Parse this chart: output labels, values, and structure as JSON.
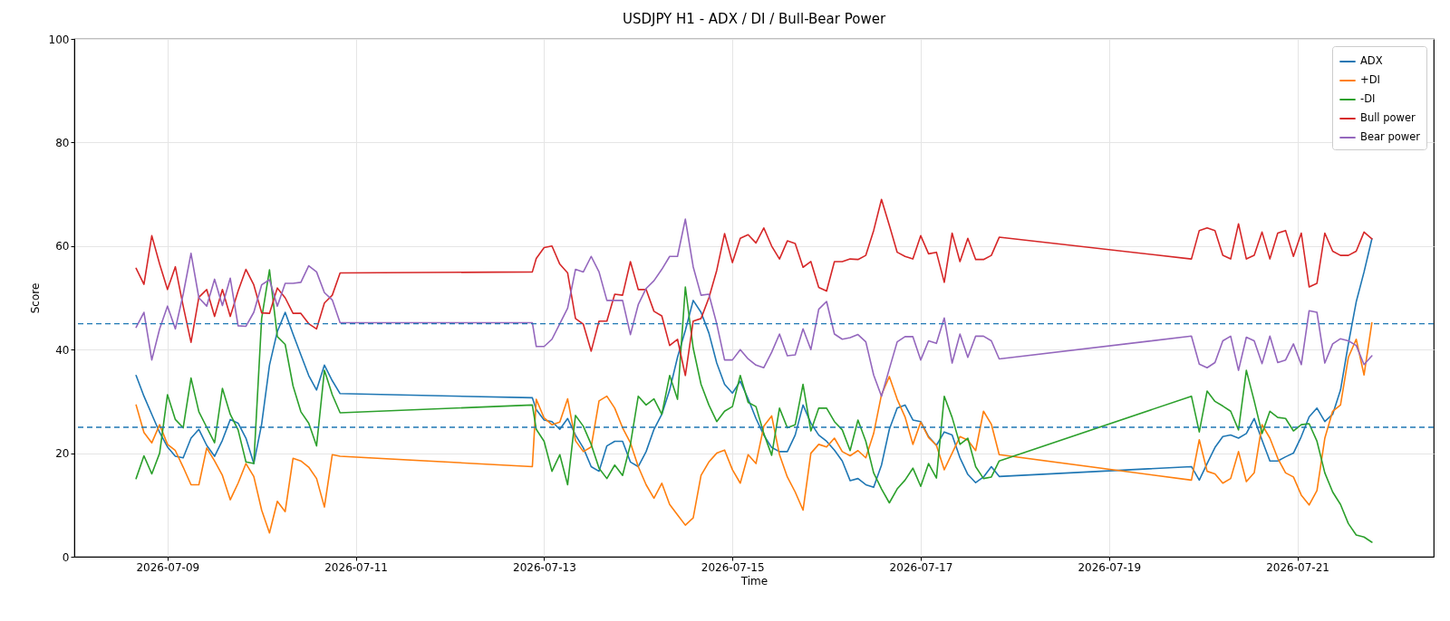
{
  "chart_data": {
    "type": "line",
    "title": "USDJPY H1 - ADX / DI / Bull-Bear Power",
    "xlabel": "Time",
    "ylabel": "Score",
    "x": [
      "2026-07-08T16:00",
      "2026-07-08T18:00",
      "2026-07-08T20:00",
      "2026-07-08T22:00",
      "2026-07-09T00:00",
      "2026-07-09T02:00",
      "2026-07-09T04:00",
      "2026-07-09T06:00",
      "2026-07-09T08:00",
      "2026-07-09T10:00",
      "2026-07-09T12:00",
      "2026-07-09T14:00",
      "2026-07-09T16:00",
      "2026-07-09T18:00",
      "2026-07-09T20:00",
      "2026-07-09T22:00",
      "2026-07-10T00:00",
      "2026-07-10T02:00",
      "2026-07-10T04:00",
      "2026-07-10T06:00",
      "2026-07-10T08:00",
      "2026-07-10T10:00",
      "2026-07-10T12:00",
      "2026-07-10T14:00",
      "2026-07-10T16:00",
      "2026-07-10T18:00",
      "2026-07-10T20:00",
      "2026-07-12T21:00",
      "2026-07-12T22:00",
      "2026-07-13T00:00",
      "2026-07-13T02:00",
      "2026-07-13T04:00",
      "2026-07-13T06:00",
      "2026-07-13T08:00",
      "2026-07-13T10:00",
      "2026-07-13T12:00",
      "2026-07-13T14:00",
      "2026-07-13T16:00",
      "2026-07-13T18:00",
      "2026-07-13T20:00",
      "2026-07-13T22:00",
      "2026-07-14T00:00",
      "2026-07-14T02:00",
      "2026-07-14T04:00",
      "2026-07-14T06:00",
      "2026-07-14T08:00",
      "2026-07-14T10:00",
      "2026-07-14T12:00",
      "2026-07-14T14:00",
      "2026-07-14T16:00",
      "2026-07-14T18:00",
      "2026-07-14T20:00",
      "2026-07-14T22:00",
      "2026-07-15T00:00",
      "2026-07-15T02:00",
      "2026-07-15T04:00",
      "2026-07-15T06:00",
      "2026-07-15T08:00",
      "2026-07-15T10:00",
      "2026-07-15T12:00",
      "2026-07-15T14:00",
      "2026-07-15T16:00",
      "2026-07-15T18:00",
      "2026-07-15T20:00",
      "2026-07-15T22:00",
      "2026-07-16T00:00",
      "2026-07-16T02:00",
      "2026-07-16T04:00",
      "2026-07-16T06:00",
      "2026-07-16T08:00",
      "2026-07-16T10:00",
      "2026-07-16T12:00",
      "2026-07-16T14:00",
      "2026-07-16T16:00",
      "2026-07-16T18:00",
      "2026-07-16T20:00",
      "2026-07-16T22:00",
      "2026-07-17T00:00",
      "2026-07-17T02:00",
      "2026-07-17T04:00",
      "2026-07-17T06:00",
      "2026-07-17T08:00",
      "2026-07-17T10:00",
      "2026-07-17T12:00",
      "2026-07-17T14:00",
      "2026-07-17T16:00",
      "2026-07-17T18:00",
      "2026-07-17T20:00",
      "2026-07-19T21:00",
      "2026-07-19T23:00",
      "2026-07-20T01:00",
      "2026-07-20T03:00",
      "2026-07-20T05:00",
      "2026-07-20T07:00",
      "2026-07-20T09:00",
      "2026-07-20T11:00",
      "2026-07-20T13:00",
      "2026-07-20T15:00",
      "2026-07-20T17:00",
      "2026-07-20T19:00",
      "2026-07-20T21:00",
      "2026-07-20T23:00",
      "2026-07-21T01:00",
      "2026-07-21T03:00",
      "2026-07-21T05:00",
      "2026-07-21T07:00",
      "2026-07-21T09:00",
      "2026-07-21T11:00",
      "2026-07-21T13:00",
      "2026-07-21T15:00",
      "2026-07-21T17:00",
      "2026-07-21T19:00"
    ],
    "series": [
      {
        "name": "ADX",
        "color": "#1f77b4",
        "values": [
          35,
          31,
          27.5,
          24,
          21.2,
          19.4,
          19.1,
          22.9,
          24.6,
          21.5,
          19.4,
          22.5,
          26.5,
          25.8,
          22.9,
          18,
          25.6,
          37,
          43.5,
          47.2,
          43,
          39,
          35,
          32.2,
          37,
          34,
          31.5,
          30.7,
          28.4,
          26.4,
          26.1,
          24.6,
          26.7,
          23.5,
          21,
          17.4,
          16.5,
          21.4,
          22.3,
          22.3,
          18.3,
          17.4,
          20.3,
          24.6,
          27.5,
          32.2,
          38.5,
          43.7,
          49.5,
          47.2,
          43.2,
          37.4,
          33.3,
          31.6,
          33.9,
          30.5,
          26.7,
          23.5,
          21.1,
          20.3,
          20.3,
          23.5,
          29.3,
          25.8,
          23.5,
          22.3,
          20.6,
          18.5,
          14.7,
          15.1,
          13.9,
          13.4,
          17.7,
          24.6,
          28.7,
          29.3,
          26.4,
          26.1,
          23.2,
          21.5,
          24.1,
          23.5,
          19.1,
          15.9,
          14.3,
          15.4,
          17.4,
          15.5,
          17.4,
          14.8,
          18,
          21.1,
          23.2,
          23.5,
          22.9,
          23.8,
          26.7,
          22.5,
          18.5,
          18.5,
          19.3,
          20,
          23.2,
          27,
          28.7,
          26.1,
          27.5,
          32.2,
          41.1,
          49.2,
          55,
          61.4
        ]
      },
      {
        "name": "+DI",
        "color": "#ff7f0e",
        "values": [
          29.3,
          24,
          22,
          25.5,
          21.7,
          20.5,
          17.3,
          13.9,
          13.9,
          21,
          18.5,
          15.7,
          11,
          14.2,
          18,
          15.5,
          9,
          4.6,
          10.7,
          8.7,
          19,
          18.5,
          17.3,
          15.1,
          9.6,
          19.7,
          19.4,
          17.4,
          30.4,
          26.8,
          25.5,
          26,
          30.5,
          22.4,
          20.3,
          21.2,
          30.1,
          31,
          28.7,
          24.9,
          22,
          17.4,
          13.9,
          11.3,
          14.2,
          10.1,
          8.1,
          6.1,
          7.5,
          15.7,
          18.3,
          20,
          20.6,
          16.8,
          14.2,
          19.7,
          18,
          25.2,
          27.2,
          19.7,
          15.4,
          12.5,
          9,
          20,
          21.7,
          21.2,
          22.9,
          20.3,
          19.5,
          20.5,
          19.1,
          23.8,
          31.3,
          34.8,
          30.4,
          27,
          21.7,
          26,
          23,
          21.5,
          16.8,
          20,
          23.2,
          22.5,
          20.5,
          28.1,
          25.6,
          19.7,
          14.8,
          22.6,
          16.5,
          16,
          14.2,
          15.1,
          20.3,
          14.5,
          16.2,
          25.5,
          22.9,
          19,
          16.2,
          15.4,
          11.9,
          10,
          12.8,
          22.9,
          28.1,
          29.3,
          38.5,
          42,
          35.1,
          45.2
        ]
      },
      {
        "name": "-DI",
        "color": "#2ca02c",
        "values": [
          15.1,
          19.5,
          16,
          20,
          31.3,
          26.5,
          24.9,
          34.5,
          28,
          25,
          22,
          32.5,
          27.5,
          24.5,
          18.3,
          18,
          46,
          55.4,
          42.5,
          41,
          33,
          28,
          25.8,
          21.4,
          36,
          31.3,
          27.8,
          29.3,
          24.6,
          22.3,
          16.5,
          19.7,
          13.9,
          27.3,
          25.2,
          21.7,
          17.1,
          15.1,
          17.7,
          15.7,
          21.7,
          31,
          29.3,
          30.5,
          27.5,
          35,
          30.4,
          52.1,
          40.3,
          33.3,
          29.3,
          26.1,
          28.1,
          29,
          35,
          29.8,
          29,
          23.8,
          19.6,
          28.7,
          24.9,
          25.5,
          33.3,
          24.3,
          28.7,
          28.7,
          26.1,
          24.5,
          20.5,
          26.4,
          22.3,
          16.2,
          13.1,
          10.4,
          13.1,
          14.8,
          17.1,
          13.6,
          18,
          15.2,
          31,
          26.9,
          21.7,
          22.9,
          17.4,
          15.1,
          15.4,
          18.5,
          31,
          24.1,
          32,
          30,
          29.1,
          28.1,
          24.5,
          36,
          30.1,
          23.8,
          28.1,
          26.9,
          26.7,
          24.3,
          25.5,
          25.7,
          22.3,
          16.2,
          12.5,
          10.1,
          6.4,
          4.2,
          3.8,
          2.8
        ]
      },
      {
        "name": "Bull power",
        "color": "#d62728",
        "values": [
          55.7,
          52.6,
          62,
          56.5,
          51.6,
          56,
          48.4,
          41.4,
          50.1,
          51.6,
          46.4,
          51.6,
          46.4,
          51.3,
          55.5,
          52.5,
          47.1,
          47,
          51.9,
          50,
          47,
          47,
          45,
          44,
          49,
          50.5,
          54.8,
          55,
          57.6,
          59.7,
          60,
          56.5,
          54.8,
          46,
          44.9,
          39.7,
          45.5,
          45.5,
          50.7,
          50.5,
          57,
          51.6,
          51.6,
          47.4,
          46.5,
          40.8,
          42,
          35,
          45.5,
          46,
          50,
          55.3,
          62.4,
          56.8,
          61.5,
          62.2,
          60.6,
          63.5,
          60,
          57.5,
          61,
          60.5,
          55.9,
          57,
          52,
          51.3,
          57,
          57,
          57.5,
          57.4,
          58.2,
          63,
          69,
          64,
          58.8,
          58,
          57.5,
          62,
          58.5,
          58.8,
          53,
          62.5,
          57,
          61.5,
          57.4,
          57.4,
          58.2,
          61.7,
          57.5,
          63,
          63.5,
          63,
          58.2,
          57.5,
          64.3,
          57.5,
          58.2,
          62.7,
          57.5,
          62.5,
          63,
          58,
          62.5,
          52.1,
          52.8,
          62.5,
          59,
          58.2,
          58.2,
          59,
          62.7,
          61.4
        ]
      },
      {
        "name": "Bear power",
        "color": "#9467bd",
        "values": [
          44.3,
          47.2,
          38,
          44,
          48.4,
          44,
          50.7,
          58.6,
          50,
          48.4,
          53.6,
          48.5,
          53.8,
          44.6,
          44.5,
          47.2,
          52.5,
          53.5,
          48.4,
          52.8,
          52.8,
          53,
          56.2,
          55,
          51,
          49.6,
          45.2,
          45.2,
          40.6,
          40.6,
          42,
          45,
          48,
          55.5,
          55,
          58,
          55,
          49.5,
          49.5,
          49.5,
          42.9,
          48.7,
          51.8,
          53.3,
          55.5,
          58,
          58,
          65.2,
          56,
          50.5,
          50.7,
          45,
          38,
          38,
          40,
          38.2,
          37,
          36.5,
          39.5,
          43,
          38.8,
          39,
          44,
          40,
          47.8,
          49.3,
          43,
          42,
          42.3,
          42.9,
          41.5,
          35.1,
          31,
          36.3,
          41.5,
          42.5,
          42.5,
          38,
          41.7,
          41.2,
          46.1,
          37.4,
          43,
          38.5,
          42.6,
          42.6,
          41.7,
          38.2,
          42.6,
          37.2,
          36.5,
          37.5,
          41.7,
          42.6,
          36,
          42.4,
          41.7,
          37.3,
          42.6,
          37.5,
          38,
          41.1,
          37.1,
          47.5,
          47.2,
          37.4,
          41.1,
          42.1,
          41.7,
          40.8,
          37.1,
          38.8
        ]
      }
    ],
    "xlim": [
      "2026-07-08T00:15",
      "2026-07-22T10:45"
    ],
    "xticks": [
      {
        "value": "2026-07-09",
        "label": "2026-07-09"
      },
      {
        "value": "2026-07-11",
        "label": "2026-07-11"
      },
      {
        "value": "2026-07-13",
        "label": "2026-07-13"
      },
      {
        "value": "2026-07-15",
        "label": "2026-07-15"
      },
      {
        "value": "2026-07-17",
        "label": "2026-07-17"
      },
      {
        "value": "2026-07-19",
        "label": "2026-07-19"
      },
      {
        "value": "2026-07-21",
        "label": "2026-07-21"
      }
    ],
    "ylim": [
      0,
      100
    ],
    "yticks": [
      0,
      20,
      40,
      60,
      80,
      100
    ],
    "ref_lines": [
      {
        "axis": "y",
        "value": 45,
        "color": "#1f77b4",
        "line_style": "dashed"
      },
      {
        "axis": "y",
        "value": 25,
        "color": "#1f77b4",
        "line_style": "dashed"
      }
    ],
    "grid": true,
    "legend": "top right"
  }
}
